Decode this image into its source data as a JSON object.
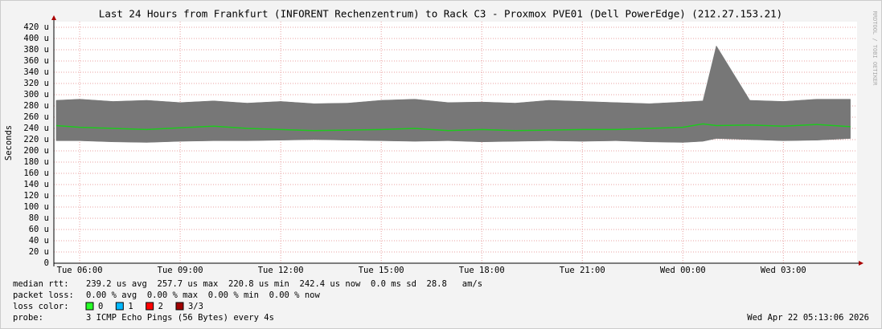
{
  "chart_data": {
    "type": "smoke",
    "title": "Last 24 Hours from Frankfurt (INFORENT Rechenzentrum) to Rack C3 - Proxmox PVE01 (Dell PowerEdge) (212.27.153.21)",
    "y_label": "Seconds",
    "watermark": "RRDTOOL / TOBI OETIKER",
    "x": [
      5.3,
      6,
      7,
      8,
      9,
      10,
      11,
      12,
      13,
      14,
      15,
      16,
      17,
      18,
      19,
      20,
      21,
      22,
      23,
      24,
      24.6,
      25,
      26,
      27,
      28,
      29
    ],
    "series": [
      {
        "name": "median",
        "color": "#1ec81e",
        "values": [
          245,
          242,
          240,
          238,
          241,
          244,
          240,
          238,
          236,
          237,
          238,
          240,
          236,
          238,
          236,
          237,
          238,
          238,
          240,
          242,
          248,
          245,
          246,
          244,
          247,
          243
        ]
      },
      {
        "name": "max",
        "color": "#777777",
        "values": [
          290,
          292,
          288,
          290,
          286,
          289,
          285,
          288,
          284,
          285,
          290,
          292,
          286,
          287,
          285,
          290,
          288,
          286,
          284,
          287,
          289,
          387,
          290,
          288,
          292,
          292
        ]
      },
      {
        "name": "min",
        "color": "#777777",
        "values": [
          218,
          218,
          216,
          215,
          217,
          218,
          218,
          219,
          220,
          219,
          218,
          217,
          218,
          216,
          217,
          218,
          217,
          218,
          216,
          215,
          217,
          222,
          220,
          218,
          219,
          222
        ]
      }
    ],
    "xlim": [
      5.23,
      29.2
    ],
    "xticks": [
      {
        "value": 6,
        "label": "Tue 06:00"
      },
      {
        "value": 9,
        "label": "Tue 09:00"
      },
      {
        "value": 12,
        "label": "Tue 12:00"
      },
      {
        "value": 15,
        "label": "Tue 15:00"
      },
      {
        "value": 18,
        "label": "Tue 18:00"
      },
      {
        "value": 21,
        "label": "Tue 21:00"
      },
      {
        "value": 24,
        "label": "Wed 00:00"
      },
      {
        "value": 27,
        "label": "Wed 03:00"
      }
    ],
    "ylim": [
      0,
      430
    ],
    "yticks": [
      0,
      {
        "value": 20,
        "label": "20 u"
      },
      {
        "value": 40,
        "label": "40 u"
      },
      {
        "value": 60,
        "label": "60 u"
      },
      {
        "value": 80,
        "label": "80 u"
      },
      {
        "value": 100,
        "label": "100 u"
      },
      {
        "value": 120,
        "label": "120 u"
      },
      {
        "value": 140,
        "label": "140 u"
      },
      {
        "value": 160,
        "label": "160 u"
      },
      {
        "value": 180,
        "label": "180 u"
      },
      {
        "value": 200,
        "label": "200 u"
      },
      {
        "value": 220,
        "label": "220 u"
      },
      {
        "value": 240,
        "label": "240 u"
      },
      {
        "value": 260,
        "label": "260 u"
      },
      {
        "value": 280,
        "label": "280 u"
      },
      {
        "value": 300,
        "label": "300 u"
      },
      {
        "value": 320,
        "label": "320 u"
      },
      {
        "value": 340,
        "label": "340 u"
      },
      {
        "value": 360,
        "label": "360 u"
      },
      {
        "value": 380,
        "label": "380 u"
      },
      {
        "value": 400,
        "label": "400 u"
      },
      {
        "value": 420,
        "label": "420 u"
      }
    ],
    "grid": true,
    "legend": {
      "median_label": "median rtt:",
      "median_stats": "239.2 us avg  257.7 us max  220.8 us min  242.4 us now  0.0 ms sd  28.8   am/s",
      "loss_label": "packet loss:",
      "loss_stats": "0.00 % avg  0.00 % max  0.00 % min  0.00 % now",
      "loss_color_label": "loss color:",
      "loss_colors": [
        {
          "label": "0",
          "color": "#26ff26"
        },
        {
          "label": "1",
          "color": "#00b8ff"
        },
        {
          "label": "2",
          "color": "#ff0000"
        },
        {
          "label": "3/3",
          "color": "#a00000"
        }
      ],
      "probe_label": "probe:",
      "probe": "3 ICMP Echo Pings (56 Bytes) every 4s",
      "timestamp": "Wed Apr 22 05:13:06 2026"
    }
  }
}
